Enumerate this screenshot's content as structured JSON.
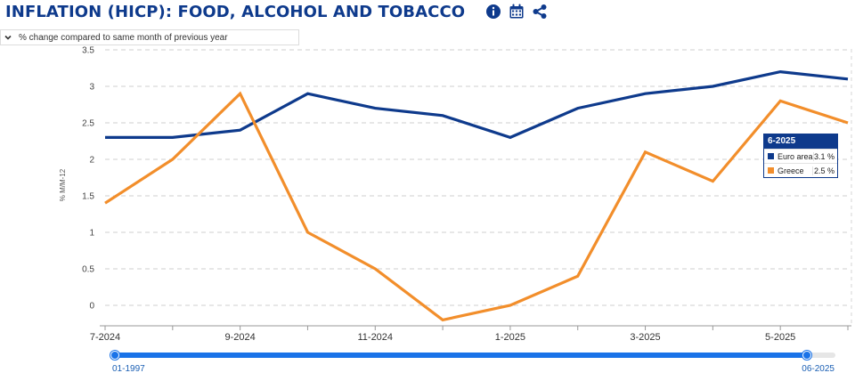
{
  "header": {
    "title": "INFLATION (HICP): FOOD, ALCOHOL AND TOBACCO",
    "icons": [
      "info-icon",
      "calendar-icon",
      "share-icon"
    ]
  },
  "selector": {
    "label": "% change compared to same month of previous year"
  },
  "chart_data": {
    "type": "line",
    "ylabel": "% M/M-12",
    "ylim": [
      -0.2,
      3.5
    ],
    "yticks": [
      0,
      0.5,
      1,
      1.5,
      2,
      2.5,
      3,
      3.5
    ],
    "ytick_labels": [
      "0",
      "0.5",
      "1",
      "1.5",
      "2",
      "2.5",
      "3",
      "3.5"
    ],
    "x": [
      "7-2024",
      "8-2024",
      "9-2024",
      "10-2024",
      "11-2024",
      "12-2024",
      "1-2025",
      "2-2025",
      "3-2025",
      "4-2025",
      "5-2025",
      "6-2025"
    ],
    "x_tick_labels": [
      "7-2024",
      "9-2024",
      "11-2024",
      "1-2025",
      "3-2025",
      "5-2025"
    ],
    "grid": true,
    "series": [
      {
        "name": "Euro area",
        "color": "#0e3a8c",
        "values": [
          2.3,
          2.3,
          2.4,
          2.9,
          2.7,
          2.6,
          2.3,
          2.7,
          2.9,
          3.0,
          3.2,
          3.1
        ]
      },
      {
        "name": "Greece",
        "color": "#f28e2b",
        "values": [
          1.4,
          2.0,
          2.9,
          1.0,
          0.5,
          -0.2,
          0.0,
          0.4,
          2.1,
          1.7,
          2.8,
          2.5
        ]
      }
    ]
  },
  "tooltip": {
    "title": "6-2025",
    "rows": [
      {
        "name": "Euro area",
        "value": "3.1 %",
        "color": "#0e3a8c"
      },
      {
        "name": "Greece",
        "value": "2.5 %",
        "color": "#f28e2b"
      }
    ]
  },
  "slider": {
    "start_label": "01-1997",
    "end_label": "06-2025",
    "position": 0.96
  }
}
